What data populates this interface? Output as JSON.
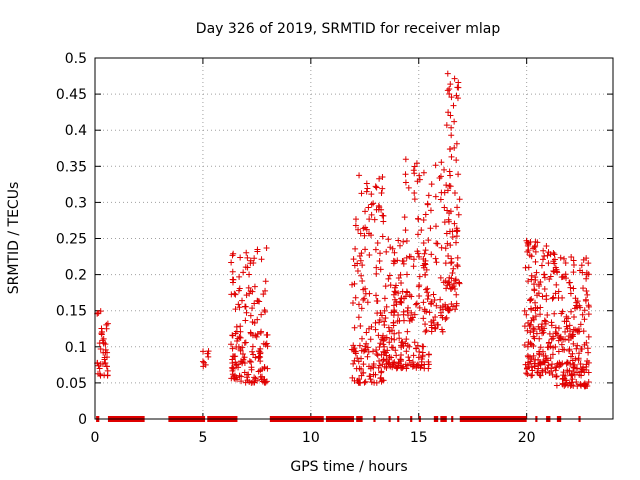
{
  "chart_data": {
    "type": "scatter",
    "title": "Day 326 of 2019, SRMTID for receiver mlap",
    "xlabel": "GPS time / hours",
    "ylabel": "SRMTID / TECUs",
    "xlim": [
      0,
      24
    ],
    "ylim": [
      0,
      0.5
    ],
    "xticks": [
      0,
      5,
      10,
      15,
      20
    ],
    "yticks": [
      0,
      0.05,
      0.1,
      0.15,
      0.2,
      0.25,
      0.3,
      0.35,
      0.4,
      0.45,
      0.5
    ],
    "grid": true,
    "marker": "+",
    "color": "#e00000",
    "clusters": [
      {
        "t_start": 0.1,
        "t_end": 0.6,
        "y_min": 0.06,
        "y_max": 0.165,
        "n": 40
      },
      {
        "t_start": 5.0,
        "t_end": 5.3,
        "y_min": 0.07,
        "y_max": 0.1,
        "n": 8
      },
      {
        "t_start": 6.3,
        "t_end": 8.0,
        "y_min": 0.05,
        "y_max": 0.24,
        "n": 170
      },
      {
        "t_start": 11.9,
        "t_end": 13.4,
        "y_min": 0.05,
        "y_max": 0.34,
        "n": 170
      },
      {
        "t_start": 13.4,
        "t_end": 14.3,
        "y_min": 0.07,
        "y_max": 0.25,
        "n": 110
      },
      {
        "t_start": 14.3,
        "t_end": 15.5,
        "y_min": 0.07,
        "y_max": 0.36,
        "n": 130
      },
      {
        "t_start": 15.5,
        "t_end": 16.3,
        "y_min": 0.12,
        "y_max": 0.36,
        "n": 60
      },
      {
        "t_start": 16.3,
        "t_end": 16.9,
        "y_min": 0.15,
        "y_max": 0.485,
        "n": 90
      },
      {
        "t_start": 19.9,
        "t_end": 21.3,
        "y_min": 0.06,
        "y_max": 0.25,
        "n": 180
      },
      {
        "t_start": 21.3,
        "t_end": 22.9,
        "y_min": 0.045,
        "y_max": 0.225,
        "n": 200
      }
    ],
    "zero_segments": [
      [
        0.05,
        0.2
      ],
      [
        0.6,
        2.3
      ],
      [
        3.4,
        5.1
      ],
      [
        5.2,
        6.6
      ],
      [
        8.1,
        10.6
      ],
      [
        10.7,
        12.0
      ],
      [
        12.1,
        12.4
      ],
      [
        12.9,
        13.0
      ],
      [
        13.6,
        13.7
      ],
      [
        14.0,
        14.1
      ],
      [
        14.6,
        14.7
      ],
      [
        15.0,
        15.1
      ],
      [
        15.7,
        15.9
      ],
      [
        16.0,
        16.3
      ],
      [
        16.5,
        16.6
      ],
      [
        16.9,
        20.0
      ],
      [
        20.4,
        20.5
      ],
      [
        20.9,
        21.1
      ],
      [
        21.4,
        21.6
      ],
      [
        22.4,
        22.5
      ]
    ]
  }
}
